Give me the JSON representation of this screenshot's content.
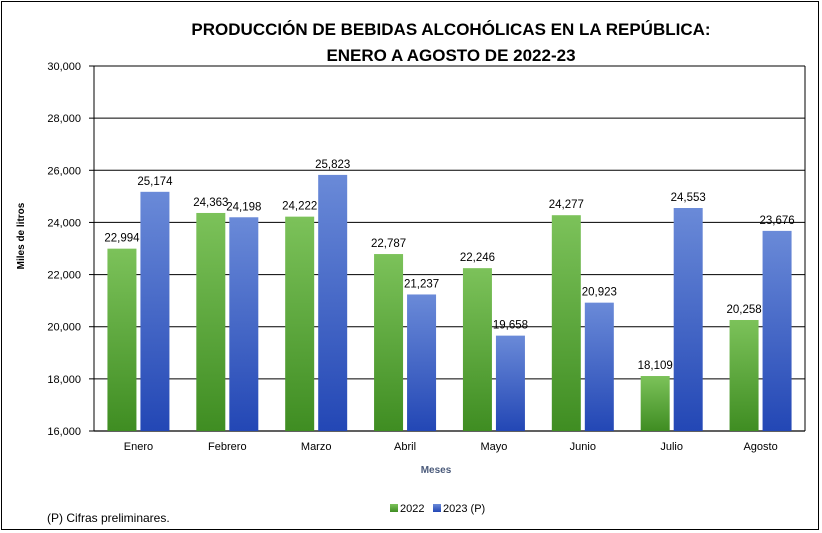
{
  "chart_data": {
    "type": "bar",
    "title_line1": "PRODUCCIÓN  DE BEBIDAS ALCOHÓLICAS EN LA REPÚBLICA:",
    "title_line2": "ENERO A AGOSTO DE 2022-23",
    "xlabel": "Meses",
    "ylabel": "Miles de litros",
    "ylim": [
      16000,
      30000
    ],
    "yticks": [
      16000,
      18000,
      20000,
      22000,
      24000,
      26000,
      28000,
      30000
    ],
    "ytick_labels": [
      "16,000",
      "18,000",
      "20,000",
      "22,000",
      "24,000",
      "26,000",
      "28,000",
      "30,000"
    ],
    "categories": [
      "Enero",
      "Febrero",
      "Marzo",
      "Abril",
      "Mayo",
      "Junio",
      "Julio",
      "Agosto"
    ],
    "series": [
      {
        "name": "2022",
        "color": "#5aa63c",
        "values": [
          22994,
          24363,
          24222,
          22787,
          22246,
          24277,
          18109,
          20258
        ],
        "labels": [
          "22,994",
          "24,363",
          "24,222",
          "22,787",
          "22,246",
          "24,277",
          "18,109",
          "20,258"
        ]
      },
      {
        "name": "2023 (P)",
        "color": "#3a62c4",
        "values": [
          25174,
          24198,
          25823,
          21237,
          19658,
          20923,
          24553,
          23676
        ],
        "labels": [
          "25,174",
          "24,198",
          "25,823",
          "21,237",
          "19,658",
          "20,923",
          "24,553",
          "23,676"
        ]
      }
    ],
    "grid": true,
    "legend_position": "bottom"
  },
  "footnote": "(P) Cifras  preliminares."
}
